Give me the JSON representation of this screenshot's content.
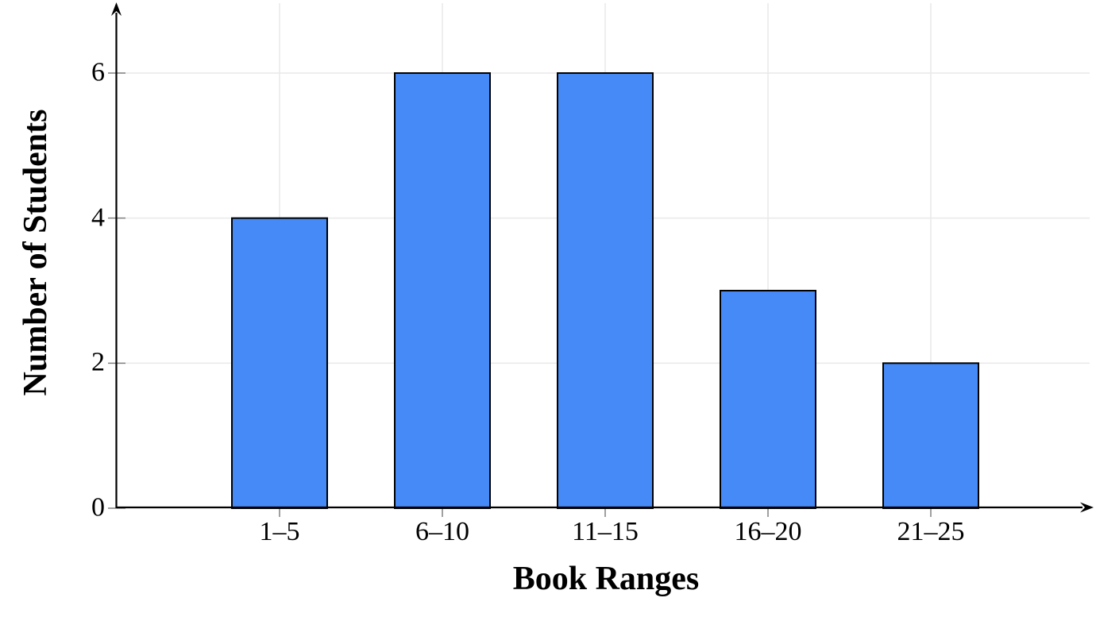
{
  "chart_data": {
    "type": "bar",
    "title": "",
    "categories": [
      "1–5",
      "6–10",
      "11–15",
      "16–20",
      "21–25"
    ],
    "values": [
      4,
      6,
      6,
      3,
      2
    ],
    "xlabel": "Book Ranges",
    "ylabel": "Number of Students",
    "y_ticks": [
      0,
      2,
      4,
      6
    ],
    "ylim": [
      0,
      7
    ],
    "grid": true,
    "legend": "none",
    "colors": {
      "bar_fill": "#468AF7",
      "bar_border": "#000000",
      "grid_line": "#E9E9E9",
      "axis_line": "#000000",
      "tick_mark": "#808080",
      "background": "#FFFFFF",
      "text": "#000000"
    }
  }
}
